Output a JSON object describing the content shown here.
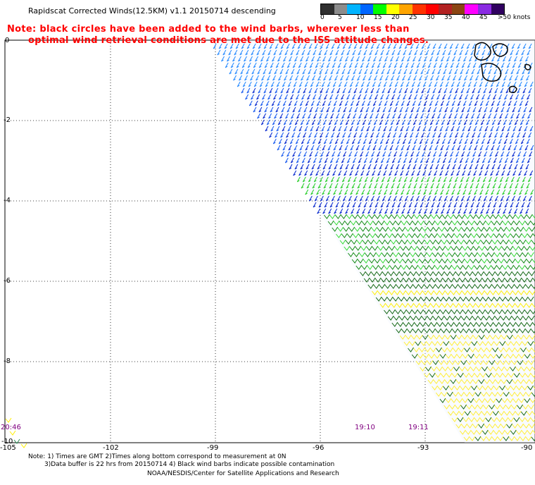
{
  "title": "Rapidscat Corrected Winds(12.5KM) v1.1 20150714 descending",
  "note": {
    "line1": "Note: black circles have been added to the wind barbs, wherever less than",
    "line2": "optimal wind retrieval conditions are met due to the ISS attitude changes."
  },
  "legend": {
    "colors": [
      "#2f2f2f",
      "#8c8c8c",
      "#00b4ff",
      "#0066ff",
      "#00ff00",
      "#ffff00",
      "#ffa500",
      "#ff3300",
      "#ff0000",
      "#b22222",
      "#8b4513",
      "#ff00ff",
      "#8a2be2",
      "#300060"
    ],
    "labels": [
      "0",
      "5",
      "10",
      "15",
      "20",
      "25",
      "30",
      "35",
      "40",
      "45",
      ">50 knots"
    ]
  },
  "axes": {
    "lat_labels": [
      "0",
      "-2",
      "-4",
      "-6",
      "-8",
      "-10"
    ],
    "lon_labels": [
      "-105",
      "-102",
      "-99",
      "-96",
      "-93",
      "-90"
    ]
  },
  "times": [
    "20:46",
    "19:10",
    "19:11"
  ],
  "footnote": {
    "line1": "Note: 1) Times are GMT 2)Times along bottom correspond to measurement at 0N",
    "line2": "3)Data buffer is 22 hrs from 20150714 4) Black wind barbs indicate possible contamination",
    "line3": "NOAA/NESDIS/Center for Satellite Applications and Research"
  }
}
